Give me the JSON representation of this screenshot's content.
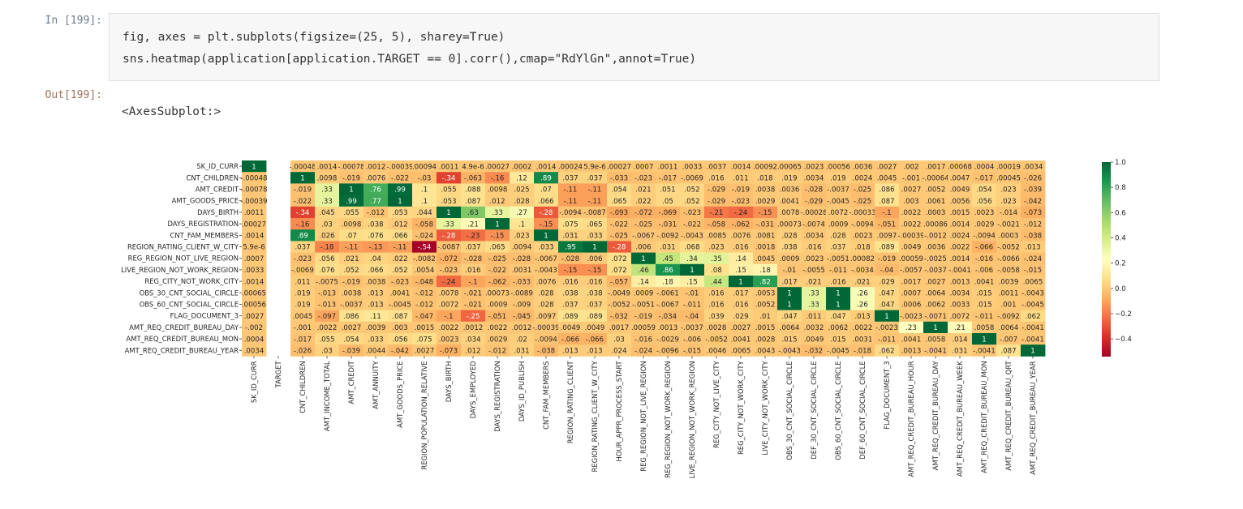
{
  "notebook": {
    "input_prompt": "In [199]:",
    "output_prompt": "Out[199]:",
    "code_lines": [
      "fig, axes = plt.subplots(figsize=(25, 5), sharey=True)",
      "sns.heatmap(application[application.TARGET == 0].corr(),cmap=\"RdYlGn\",annot=True)"
    ],
    "output_text": "<AxesSubplot:>"
  },
  "colors": {
    "code_bg": "#f7f7f7",
    "strong_negative": "#a50026",
    "neutral": "#ffffbf",
    "strong_positive": "#006837"
  },
  "chart_data": {
    "type": "heatmap",
    "cmap": "RdYlGn",
    "vmin": -0.54,
    "vmax": 1.0,
    "title": "",
    "xlabel": "",
    "ylabel": "",
    "y_labels": [
      "SK_ID_CURR",
      "CNT_CHILDREN",
      "AMT_CREDIT",
      "AMT_GOODS_PRICE",
      "DAYS_BIRTH",
      "DAYS_REGISTRATION",
      "CNT_FAM_MEMBERS",
      "REGION_RATING_CLIENT_W_CITY",
      "REG_REGION_NOT_LIVE_REGION",
      "LIVE_REGION_NOT_WORK_REGION",
      "REG_CITY_NOT_WORK_CITY",
      "OBS_30_CNT_SOCIAL_CIRCLE",
      "OBS_60_CNT_SOCIAL_CIRCLE",
      "FLAG_DOCUMENT_3",
      "AMT_REQ_CREDIT_BUREAU_DAY",
      "AMT_REQ_CREDIT_BUREAU_MON",
      "AMT_REQ_CREDIT_BUREAU_YEAR"
    ],
    "x_labels": [
      "SK_ID_CURR",
      "TARGET",
      "CNT_CHILDREN",
      "AMT_INCOME_TOTAL",
      "AMT_CREDIT",
      "AMT_ANNUITY",
      "AMT_GOODS_PRICE",
      "REGION_POPULATION_RELATIVE",
      "DAYS_BIRTH",
      "DAYS_EMPLOYED",
      "DAYS_REGISTRATION",
      "DAYS_ID_PUBLISH",
      "CNT_FAM_MEMBERS",
      "REGION_RATING_CLIENT",
      "REGION_RATING_CLIENT_W_CITY",
      "HOUR_APPR_PROCESS_START",
      "REG_REGION_NOT_LIVE_REGION",
      "REG_REGION_NOT_WORK_REGION",
      "LIVE_REGION_NOT_WORK_REGION",
      "REG_CITY_NOT_LIVE_CITY",
      "REG_CITY_NOT_WORK_CITY",
      "LIVE_CITY_NOT_WORK_CITY",
      "OBS_30_CNT_SOCIAL_CIRCLE",
      "DEF_30_CNT_SOCIAL_CIRCLE",
      "OBS_60_CNT_SOCIAL_CIRCLE",
      "DEF_60_CNT_SOCIAL_CIRCLE",
      "FLAG_DOCUMENT_3",
      "AMT_REQ_CREDIT_BUREAU_HOUR",
      "AMT_REQ_CREDIT_BUREAU_DAY",
      "AMT_REQ_CREDIT_BUREAU_WEEK",
      "AMT_REQ_CREDIT_BUREAU_MON",
      "AMT_REQ_CREDIT_BUREAU_QRT",
      "AMT_REQ_CREDIT_BUREAU_YEAR"
    ],
    "row_values": [
      [
        1,
        null,
        -0.00048,
        0.0014,
        -0.00078,
        0.0012,
        -0.00039,
        0.00094,
        0.0011,
        4.9e-06,
        0.00027,
        0.0002,
        0.0014,
        0.00024,
        5.9e-06,
        0.00027,
        0.0007,
        0.0011,
        0.0033,
        0.0037,
        0.0014,
        0.00092,
        0.00065,
        0.0023,
        0.00056,
        0.0036,
        0.0027,
        0.002,
        0.0017,
        0.00068,
        0.0004,
        0.00019,
        0.0034
      ],
      [
        -0.00048,
        null,
        1,
        0.0098,
        -0.019,
        0.0076,
        -0.022,
        -0.03,
        -0.34,
        -0.063,
        -0.16,
        0.12,
        0.89,
        0.037,
        0.037,
        -0.033,
        -0.023,
        -0.017,
        -0.0069,
        0.016,
        0.011,
        0.018,
        0.019,
        0.0034,
        0.019,
        0.0024,
        0.0045,
        -0.001,
        -0.00064,
        0.0047,
        -0.017,
        0.00045,
        -0.026
      ],
      [
        -0.00078,
        null,
        -0.019,
        0.33,
        1,
        0.76,
        0.99,
        0.1,
        0.055,
        0.088,
        0.0098,
        0.025,
        0.07,
        -0.11,
        -0.11,
        0.054,
        0.021,
        0.051,
        0.052,
        -0.029,
        -0.019,
        0.0038,
        0.0036,
        -0.028,
        -0.0037,
        -0.025,
        0.086,
        0.0027,
        0.0052,
        0.0049,
        0.054,
        0.023,
        -0.039
      ],
      [
        -0.00039,
        null,
        -0.022,
        0.33,
        0.99,
        0.77,
        1,
        0.1,
        0.053,
        0.087,
        0.012,
        0.028,
        0.066,
        -0.11,
        -0.11,
        0.065,
        0.022,
        0.05,
        0.052,
        -0.029,
        -0.023,
        0.0029,
        0.0041,
        -0.029,
        -0.0045,
        -0.025,
        0.087,
        0.003,
        0.0061,
        0.0056,
        0.056,
        0.023,
        -0.042
      ],
      [
        0.0011,
        null,
        -0.34,
        0.045,
        0.055,
        -0.012,
        0.053,
        0.044,
        1,
        0.63,
        0.33,
        0.27,
        -0.28,
        -0.0094,
        -0.0087,
        -0.093,
        -0.072,
        -0.069,
        -0.023,
        -0.21,
        -0.24,
        -0.15,
        0.0078,
        -0.00028,
        0.0072,
        -0.00033,
        -0.1,
        0.0022,
        0.0003,
        0.0015,
        0.0023,
        -0.014,
        -0.073
      ],
      [
        0.00027,
        null,
        -0.16,
        0.03,
        0.0098,
        0.038,
        0.012,
        -0.058,
        0.33,
        0.21,
        1,
        0.1,
        -0.15,
        0.075,
        0.065,
        -0.022,
        -0.025,
        -0.031,
        -0.022,
        -0.058,
        -0.062,
        -0.031,
        0.00073,
        -0.0074,
        0.0009,
        -0.0094,
        -0.051,
        0.0022,
        0.00086,
        0.0014,
        0.0029,
        -0.0021,
        -0.012
      ],
      [
        0.0014,
        null,
        0.89,
        0.026,
        0.07,
        0.076,
        0.066,
        -0.024,
        -0.28,
        -0.23,
        -0.15,
        0.023,
        1,
        0.031,
        0.033,
        -0.025,
        -0.0067,
        -0.0092,
        -0.0043,
        0.0085,
        0.0076,
        0.0081,
        0.028,
        0.0034,
        0.028,
        0.0023,
        0.0097,
        -0.00039,
        -0.0012,
        0.0024,
        -0.0094,
        0.0003,
        -0.038
      ],
      [
        5.9e-06,
        null,
        0.037,
        -0.18,
        -0.11,
        -0.13,
        -0.11,
        -0.54,
        -0.0087,
        0.037,
        0.065,
        0.0094,
        0.033,
        0.95,
        1,
        -0.28,
        0.006,
        0.031,
        0.068,
        0.023,
        0.016,
        0.0018,
        0.038,
        0.016,
        0.037,
        0.018,
        0.089,
        0.0049,
        0.0036,
        0.0022,
        -0.066,
        -0.0052,
        0.013
      ],
      [
        0.0007,
        null,
        -0.023,
        0.056,
        0.021,
        0.04,
        0.022,
        -0.0082,
        -0.072,
        -0.028,
        -0.025,
        -0.028,
        -0.0067,
        -0.028,
        0.006,
        0.072,
        1,
        0.45,
        0.34,
        0.35,
        0.14,
        0.0045,
        0.0009,
        0.0023,
        -0.0051,
        0.00082,
        -0.019,
        0.00059,
        -0.0025,
        0.0014,
        -0.016,
        -0.0066,
        -0.024
      ],
      [
        0.0033,
        null,
        -0.0069,
        0.076,
        0.052,
        0.066,
        0.052,
        0.0054,
        -0.023,
        0.016,
        -0.022,
        0.0031,
        -0.0043,
        -0.15,
        -0.15,
        0.072,
        0.46,
        0.86,
        1,
        0.08,
        0.15,
        0.18,
        -0.01,
        -0.0055,
        -0.011,
        -0.0034,
        -0.04,
        -0.0057,
        -0.0037,
        -0.0041,
        -0.006,
        -0.0058,
        -0.015
      ],
      [
        0.0014,
        null,
        0.011,
        -0.0075,
        -0.019,
        0.0038,
        -0.023,
        -0.048,
        -0.24,
        -0.1,
        -0.062,
        -0.033,
        0.0076,
        0.016,
        0.016,
        -0.057,
        0.14,
        0.18,
        0.15,
        0.44,
        1,
        0.82,
        0.017,
        0.021,
        0.016,
        0.021,
        0.029,
        0.0017,
        0.0027,
        0.0013,
        0.0041,
        0.0039,
        0.0065
      ],
      [
        0.00065,
        null,
        0.019,
        -0.013,
        0.0038,
        0.013,
        0.0041,
        -0.012,
        0.0078,
        -0.021,
        0.00073,
        -0.0089,
        0.028,
        0.038,
        0.038,
        -0.0049,
        0.0009,
        -0.0061,
        -0.01,
        0.016,
        0.017,
        0.0053,
        1,
        0.33,
        1,
        0.26,
        0.047,
        0.0007,
        0.0064,
        0.0034,
        0.015,
        0.0011,
        -0.0043
      ],
      [
        0.00056,
        null,
        0.019,
        -0.013,
        -0.0037,
        0.013,
        -0.0045,
        -0.012,
        0.0072,
        -0.021,
        0.0009,
        -0.009,
        0.028,
        0.037,
        0.037,
        -0.0052,
        -0.0051,
        -0.0067,
        -0.011,
        0.016,
        0.016,
        0.0052,
        1,
        0.33,
        1,
        0.26,
        0.047,
        0.0006,
        0.0062,
        0.0033,
        0.015,
        0.001,
        -0.0045
      ],
      [
        0.0027,
        null,
        0.0045,
        -0.097,
        0.086,
        0.11,
        0.087,
        -0.047,
        -0.1,
        -0.25,
        -0.051,
        -0.045,
        0.0097,
        0.089,
        0.089,
        -0.032,
        -0.019,
        -0.034,
        -0.04,
        0.039,
        0.029,
        0.01,
        0.047,
        0.011,
        0.047,
        0.013,
        1,
        -0.0023,
        -0.0071,
        0.0072,
        -0.011,
        -0.0092,
        0.062
      ],
      [
        -0.002,
        null,
        -0.001,
        0.0022,
        0.0027,
        0.0039,
        0.003,
        0.0015,
        0.0022,
        0.0012,
        0.0022,
        0.0012,
        -0.00039,
        0.0049,
        0.0049,
        0.0017,
        0.00059,
        0.0013,
        -0.0037,
        0.0028,
        0.0027,
        0.0015,
        0.0064,
        0.0032,
        0.0062,
        0.0022,
        -0.0023,
        0.23,
        1,
        0.21,
        0.0058,
        0.0064,
        -0.0041
      ],
      [
        0.0004,
        null,
        -0.017,
        0.055,
        0.054,
        0.033,
        0.056,
        0.075,
        0.0023,
        0.034,
        0.0029,
        0.02,
        -0.0094,
        -0.066,
        -0.066,
        0.03,
        -0.016,
        -0.0029,
        -0.006,
        -0.0052,
        0.0041,
        0.0028,
        0.015,
        0.0049,
        0.015,
        0.0031,
        -0.011,
        0.0041,
        0.0058,
        0.014,
        1,
        -0.007,
        -0.0041
      ],
      [
        0.0034,
        null,
        -0.026,
        0.03,
        -0.039,
        0.0044,
        -0.042,
        0.0027,
        -0.073,
        0.012,
        -0.012,
        0.031,
        -0.038,
        0.013,
        0.013,
        0.024,
        -0.024,
        -0.0096,
        -0.015,
        0.0046,
        0.0065,
        0.0043,
        -0.0043,
        -0.032,
        -0.0045,
        -0.018,
        0.062,
        0.0013,
        -0.0041,
        0.031,
        -0.0041,
        0.087,
        1
      ]
    ],
    "colorbar_ticks": [
      1.0,
      0.8,
      0.6,
      0.4,
      0.2,
      0.0,
      -0.2,
      -0.4
    ],
    "colorbar_range": [
      -0.54,
      1.0
    ],
    "grid": false,
    "legend": "colorbar-right"
  }
}
